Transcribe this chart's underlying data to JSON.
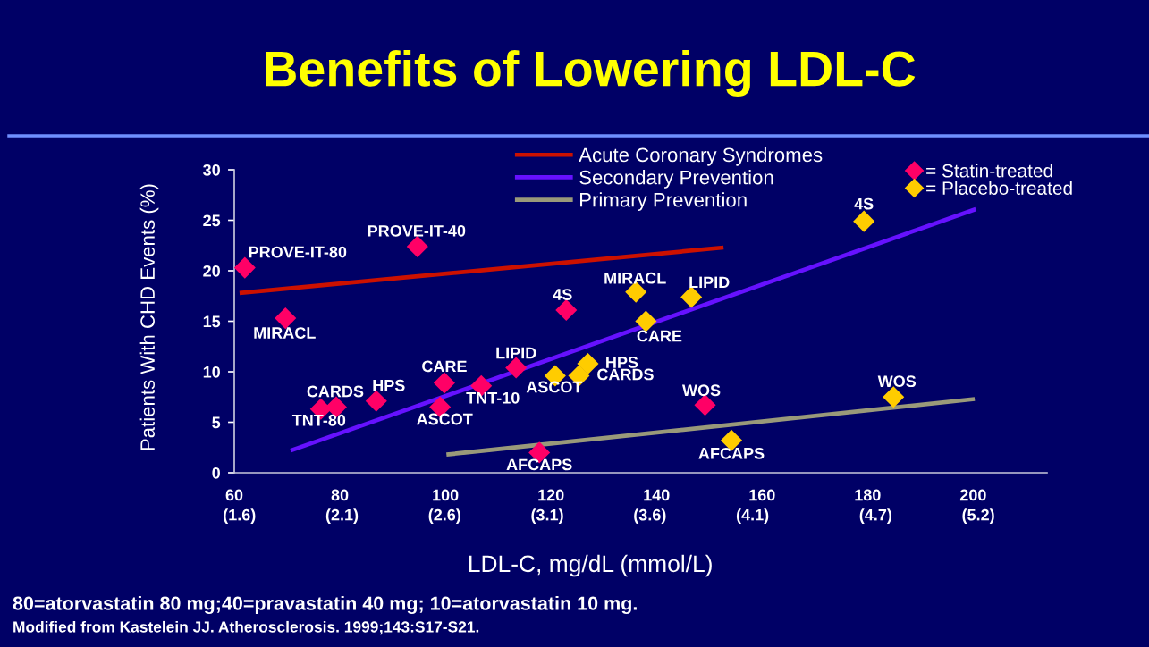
{
  "chart_data": {
    "type": "scatter",
    "title": "Benefits of Lowering LDL-C",
    "xlabel": "LDL-C, mg/dL (mmol/L)",
    "ylabel": "Patients With CHD Events (%)",
    "xlim": [
      60,
      214
    ],
    "ylim": [
      0,
      30
    ],
    "xticks": [
      60,
      80,
      100,
      120,
      140,
      160,
      180,
      200
    ],
    "x2lim": [
      1.575,
      5.535
    ],
    "x2ticks": [
      {
        "value": 1.6,
        "label": "(1.6)"
      },
      {
        "value": 2.1,
        "label": "(2.1)"
      },
      {
        "value": 2.6,
        "label": "(2.6)"
      },
      {
        "value": 3.1,
        "label": "(3.1)"
      },
      {
        "value": 3.6,
        "label": "(3.6)"
      },
      {
        "value": 4.1,
        "label": "(4.1)"
      },
      {
        "value": 4.7,
        "label": "(4.7)"
      },
      {
        "value": 5.2,
        "label": "(5.2)"
      }
    ],
    "yticks": [
      0,
      5,
      10,
      15,
      20,
      25,
      30
    ],
    "legend": "top right",
    "series": [
      {
        "name": "Acute Coronary Syndromes",
        "type": "line",
        "color": "#cc1100",
        "x": [
          61.0,
          152.7
        ],
        "values": [
          17.8,
          22.3
        ]
      },
      {
        "name": "Secondary Prevention",
        "type": "line",
        "color": "#6611ff",
        "x": [
          70.7,
          200.5
        ],
        "values": [
          2.2,
          26.1
        ]
      },
      {
        "name": "Primary Prevention",
        "type": "line",
        "color": "#99997a",
        "x": [
          100.2,
          200.3
        ],
        "values": [
          1.8,
          7.3
        ]
      },
      {
        "name": "= Statin-treated",
        "marker": "diamond",
        "color": "#ff0066",
        "x": [
          62.0,
          94.7,
          69.7,
          76.4,
          79.3,
          86.9,
          99.8,
          99.0,
          106.8,
          113.4,
          122.9,
          117.8,
          149.2
        ],
        "values": [
          20.3,
          22.4,
          15.3,
          6.3,
          6.5,
          7.1,
          8.9,
          6.5,
          8.6,
          10.4,
          16.1,
          2.0,
          6.7
        ]
      },
      {
        "name": "= Placebo-treated",
        "marker": "diamond",
        "color": "#ffcc00",
        "x": [
          136.1,
          146.6,
          138.0,
          127.0,
          120.8,
          125.3,
          154.2,
          179.3,
          184.9
        ],
        "values": [
          17.9,
          17.4,
          15.0,
          10.8,
          9.6,
          9.6,
          3.2,
          24.9,
          7.5
        ]
      }
    ],
    "annotations": [
      {
        "text": "PROVE-IT-80",
        "x": 62.0,
        "y": 20.3
      },
      {
        "text": "PROVE-IT-40",
        "x": 94.7,
        "y": 22.4
      },
      {
        "text": "MIRACL",
        "x": 69.7,
        "y": 15.3
      },
      {
        "text": "TNT-80",
        "x": 76.4,
        "y": 6.3
      },
      {
        "text": "CARDS",
        "x": 79.3,
        "y": 6.5
      },
      {
        "text": "HPS",
        "x": 86.9,
        "y": 7.1
      },
      {
        "text": "CARE",
        "x": 99.8,
        "y": 8.9
      },
      {
        "text": "ASCOT",
        "x": 99.0,
        "y": 6.5
      },
      {
        "text": "TNT-10",
        "x": 106.8,
        "y": 8.6
      },
      {
        "text": "LIPID",
        "x": 113.4,
        "y": 10.4
      },
      {
        "text": "4S",
        "x": 122.9,
        "y": 16.1
      },
      {
        "text": "AFCAPS",
        "x": 117.8,
        "y": 2.0
      },
      {
        "text": "WOS",
        "x": 149.2,
        "y": 6.7
      },
      {
        "text": "MIRACL",
        "x": 136.1,
        "y": 17.9
      },
      {
        "text": "LIPID",
        "x": 146.6,
        "y": 17.4
      },
      {
        "text": "CARE",
        "x": 138.0,
        "y": 15.0
      },
      {
        "text": "HPS",
        "x": 127.0,
        "y": 10.8
      },
      {
        "text": "ASCOT",
        "x": 120.8,
        "y": 9.6
      },
      {
        "text": "CARDS",
        "x": 125.3,
        "y": 9.6
      },
      {
        "text": "AFCAPS",
        "x": 154.2,
        "y": 3.2
      },
      {
        "text": "4S",
        "x": 179.3,
        "y": 24.9
      },
      {
        "text": "WOS",
        "x": 184.9,
        "y": 7.5
      },
      "80=atorvastatin 80 mg;40=pravastatin 40 mg; 10=atorvastatin 10 mg.",
      "Modified from Kastelein JJ. Atherosclerosis. 1999;143:S17-S21."
    ]
  }
}
